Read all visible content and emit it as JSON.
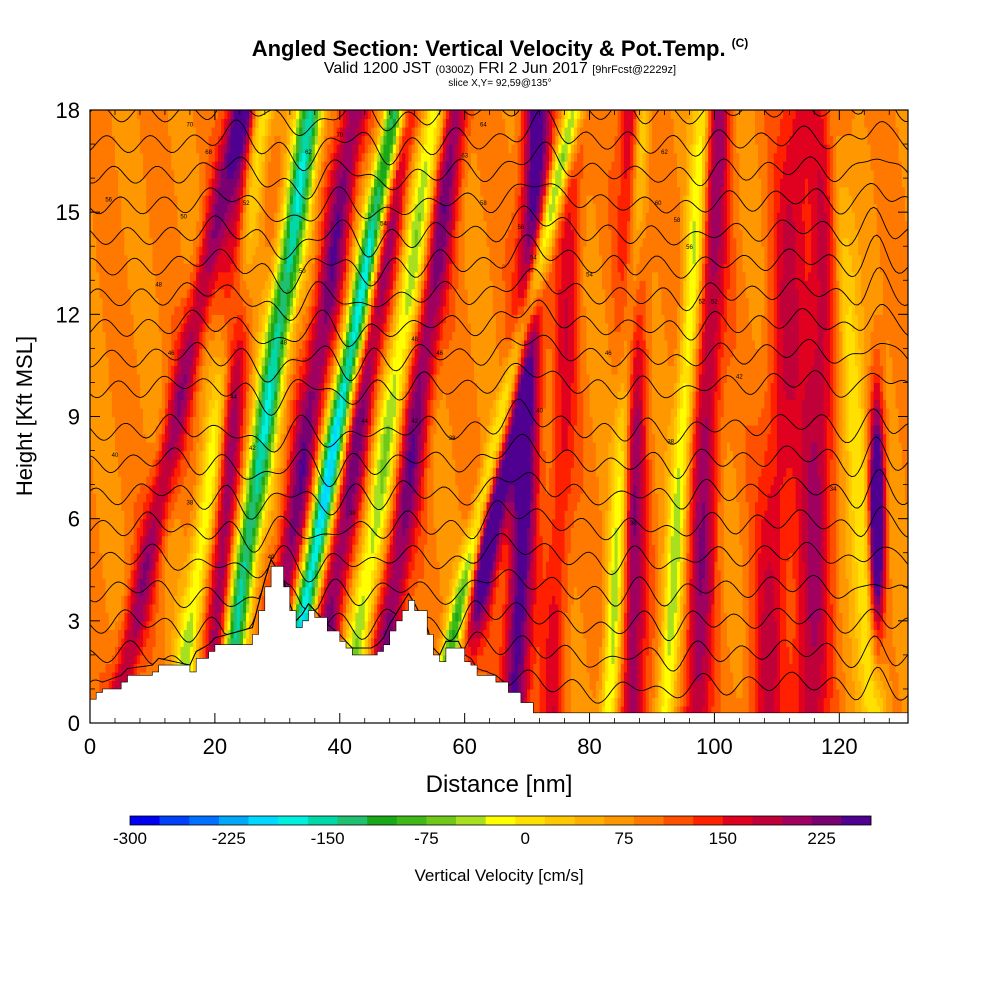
{
  "header": {
    "title": "Angled Section: Vertical Velocity & Pot.Temp.",
    "title_units": "(C)",
    "valid_prefix": "Valid 1200 JST",
    "valid_zulu": "(0300Z)",
    "valid_date": "FRI 2 Jun 2017",
    "forecast": "[9hrFcst@2229z]",
    "slice": "slice X,Y= 92,59@135°"
  },
  "chart_data": {
    "type": "heatmap",
    "xlabel": "Distance [nm]",
    "ylabel": "Height [Kft MSL]",
    "xlim": [
      0,
      131
    ],
    "ylim": [
      0,
      18
    ],
    "x_ticks": [
      0,
      20,
      40,
      60,
      80,
      100,
      120
    ],
    "y_ticks": [
      0,
      3,
      6,
      9,
      12,
      15,
      18
    ],
    "x_tick_labels": [
      "0",
      "20",
      "40",
      "60",
      "80",
      "100",
      "120"
    ],
    "y_tick_labels": [
      "0",
      "3",
      "6",
      "9",
      "12",
      "15",
      "18"
    ],
    "grid": false,
    "colorbar": {
      "label": "Vertical Velocity [cm/s]",
      "min": -300,
      "max": 262.5,
      "step": 18.75,
      "labeled_values": [
        -300,
        -225,
        -150,
        -75,
        0,
        75,
        150,
        225
      ],
      "labels": [
        "-300",
        "-225",
        "-150",
        "-75",
        "0",
        "75",
        "150",
        "225"
      ],
      "colors": [
        "#0000f0",
        "#0040f8",
        "#0070ff",
        "#00a8f8",
        "#00d8ff",
        "#00f0e0",
        "#00d8a8",
        "#20c070",
        "#18a818",
        "#40b818",
        "#70c818",
        "#a8e020",
        "#ffff00",
        "#ffe000",
        "#ffc800",
        "#ffb000",
        "#ff9800",
        "#ff7800",
        "#ff5000",
        "#ff2000",
        "#e00020",
        "#c00038",
        "#a00060",
        "#780070",
        "#500090"
      ]
    },
    "terrain": {
      "x": [
        0,
        1,
        2,
        5,
        6,
        10,
        11,
        16,
        17,
        19,
        20,
        26,
        27,
        28,
        29,
        31,
        32,
        33,
        34,
        35,
        36,
        38,
        40,
        41,
        42,
        45,
        46,
        47,
        48,
        49,
        50,
        51,
        52,
        54,
        55,
        56,
        57,
        59,
        60,
        61,
        62,
        65,
        67,
        69,
        71,
        131
      ],
      "height": [
        0.7,
        0.9,
        1.0,
        1.2,
        1.4,
        1.5,
        1.7,
        1.5,
        1.9,
        2.1,
        2.3,
        2.6,
        3.3,
        4.0,
        4.6,
        4.0,
        3.3,
        2.8,
        3.0,
        3.3,
        3.1,
        2.7,
        2.4,
        2.2,
        2.0,
        2.0,
        2.1,
        2.3,
        2.7,
        3.0,
        3.3,
        3.6,
        3.3,
        2.6,
        2.0,
        1.8,
        2.2,
        2.2,
        1.8,
        1.7,
        1.4,
        1.2,
        0.9,
        0.6,
        0.3,
        0.3
      ]
    },
    "updrafts_cm_s": [
      {
        "x_surface": 4,
        "tilt_nm_per_kft": 1.1,
        "peak": 100,
        "width_nm": 2.0
      },
      {
        "x_surface": 14,
        "tilt_nm_per_kft": 0.75,
        "peak": -100,
        "width_nm": 1.8
      },
      {
        "x_surface": 20,
        "tilt_nm_per_kft": 0.27,
        "peak": 120,
        "width_nm": 2.0
      },
      {
        "x_surface": 21,
        "tilt_nm_per_kft": 0.8,
        "peak": -200,
        "width_nm": 2.0
      },
      {
        "x_surface": 28,
        "tilt_nm_per_kft": 0.8,
        "peak": 120,
        "width_nm": 2.2
      },
      {
        "x_surface": 31,
        "tilt_nm_per_kft": 1.0,
        "peak": -240,
        "width_nm": 1.8
      },
      {
        "x_surface": 36,
        "tilt_nm_per_kft": 0.8,
        "peak": 120,
        "width_nm": 2.2
      },
      {
        "x_surface": 41,
        "tilt_nm_per_kft": 0.8,
        "peak": -110,
        "width_nm": 2.0
      },
      {
        "x_surface": 46,
        "tilt_nm_per_kft": 0.7,
        "peak": 120,
        "width_nm": 2.2
      },
      {
        "x_surface": 55,
        "tilt_nm_per_kft": 1.25,
        "peak": -150,
        "width_nm": 1.5
      },
      {
        "x_surface": 59,
        "tilt_nm_per_kft": 0.9,
        "peak": 220,
        "width_nm": 2.0
      },
      {
        "x_surface": 68,
        "tilt_nm_per_kft": 0.2,
        "peak": 150,
        "width_nm": 2.2
      },
      {
        "x_surface": 74,
        "tilt_nm_per_kft": 0.2,
        "peak": 60,
        "width_nm": 2.0
      },
      {
        "x_surface": 83,
        "tilt_nm_per_kft": 0.3,
        "peak": -110,
        "width_nm": 1.4
      },
      {
        "x_surface": 87,
        "tilt_nm_per_kft": 0.0,
        "peak": 110,
        "width_nm": 2.0
      },
      {
        "x_surface": 92,
        "tilt_nm_per_kft": 0.35,
        "peak": -100,
        "width_nm": 1.5
      },
      {
        "x_surface": 97,
        "tilt_nm_per_kft": 0.2,
        "peak": 100,
        "width_nm": 2.2
      },
      {
        "x_surface": 108,
        "tilt_nm_per_kft": 0.3,
        "peak": 70,
        "width_nm": 3.0
      },
      {
        "x_surface": 115,
        "tilt_nm_per_kft": 0.2,
        "peak": 90,
        "width_nm": 3.0
      },
      {
        "x_surface": 126,
        "tilt_nm_per_kft": -0.4,
        "peak": -90,
        "width_nm": 2.0
      },
      {
        "x_surface": 126,
        "tilt_nm_per_kft": 0.0,
        "peak": 250,
        "width_nm": 1.2
      }
    ],
    "theta_contours_c": {
      "base_temp": 26,
      "interval": 2,
      "kft_per_interval": 1.0,
      "count": 20
    },
    "contour_labels": [
      {
        "x": 16,
        "y": 17.6,
        "text": "70"
      },
      {
        "x": 19,
        "y": 16.8,
        "text": "68"
      },
      {
        "x": 3,
        "y": 15.4,
        "text": "56"
      },
      {
        "x": 15,
        "y": 14.9,
        "text": "50"
      },
      {
        "x": 25,
        "y": 15.3,
        "text": "52"
      },
      {
        "x": 40,
        "y": 17.3,
        "text": "70"
      },
      {
        "x": 35,
        "y": 16.8,
        "text": "62"
      },
      {
        "x": 47,
        "y": 14.7,
        "text": "54"
      },
      {
        "x": 63,
        "y": 17.6,
        "text": "64"
      },
      {
        "x": 60,
        "y": 16.7,
        "text": "63"
      },
      {
        "x": 63,
        "y": 15.3,
        "text": "58"
      },
      {
        "x": 69,
        "y": 14.6,
        "text": "56"
      },
      {
        "x": 71,
        "y": 13.7,
        "text": "54"
      },
      {
        "x": 92,
        "y": 16.8,
        "text": "62"
      },
      {
        "x": 91,
        "y": 15.3,
        "text": "60"
      },
      {
        "x": 94,
        "y": 14.8,
        "text": "58"
      },
      {
        "x": 96,
        "y": 14.0,
        "text": "56"
      },
      {
        "x": 80,
        "y": 13.2,
        "text": "54"
      },
      {
        "x": 98,
        "y": 12.4,
        "text": "52"
      },
      {
        "x": 100,
        "y": 12.4,
        "text": "52"
      },
      {
        "x": 11,
        "y": 12.9,
        "text": "48"
      },
      {
        "x": 34,
        "y": 13.3,
        "text": "50"
      },
      {
        "x": 13,
        "y": 10.9,
        "text": "46"
      },
      {
        "x": 31,
        "y": 11.2,
        "text": "48"
      },
      {
        "x": 52,
        "y": 11.3,
        "text": "48"
      },
      {
        "x": 56,
        "y": 10.9,
        "text": "46"
      },
      {
        "x": 83,
        "y": 10.9,
        "text": "46"
      },
      {
        "x": 104,
        "y": 10.2,
        "text": "42"
      },
      {
        "x": 23,
        "y": 9.6,
        "text": "44"
      },
      {
        "x": 44,
        "y": 8.9,
        "text": "44"
      },
      {
        "x": 52,
        "y": 8.9,
        "text": "42"
      },
      {
        "x": 72,
        "y": 9.2,
        "text": "40"
      },
      {
        "x": 4,
        "y": 7.9,
        "text": "40"
      },
      {
        "x": 26,
        "y": 8.1,
        "text": "42"
      },
      {
        "x": 58,
        "y": 8.4,
        "text": "38"
      },
      {
        "x": 93,
        "y": 8.3,
        "text": "38"
      },
      {
        "x": 16,
        "y": 6.5,
        "text": "38"
      },
      {
        "x": 42,
        "y": 6.2,
        "text": "38"
      },
      {
        "x": 87,
        "y": 5.9,
        "text": "36"
      },
      {
        "x": 119,
        "y": 6.9,
        "text": "34"
      },
      {
        "x": 29,
        "y": 4.9,
        "text": "40"
      }
    ]
  }
}
